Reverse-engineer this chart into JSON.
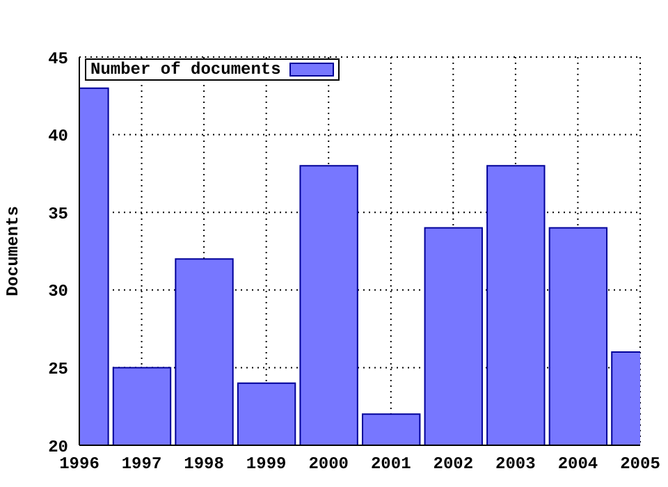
{
  "chart_data": {
    "type": "bar",
    "ylabel": "Documents",
    "x": [
      1996,
      1997,
      1998,
      1999,
      2000,
      2001,
      2002,
      2003,
      2004,
      2005
    ],
    "series": [
      {
        "name": "Number of documents",
        "color": "#7777ff",
        "values": [
          43,
          25,
          32,
          24,
          38,
          22,
          34,
          38,
          34,
          26
        ]
      }
    ],
    "xlim": [
      1996,
      2005
    ],
    "xticks": [
      1996,
      1997,
      1998,
      1999,
      2000,
      2001,
      2002,
      2003,
      2004,
      2005
    ],
    "ylim": [
      20,
      45
    ],
    "yticks": [
      20,
      25,
      30,
      35,
      40,
      45
    ],
    "grid": true,
    "legend": "top left"
  }
}
